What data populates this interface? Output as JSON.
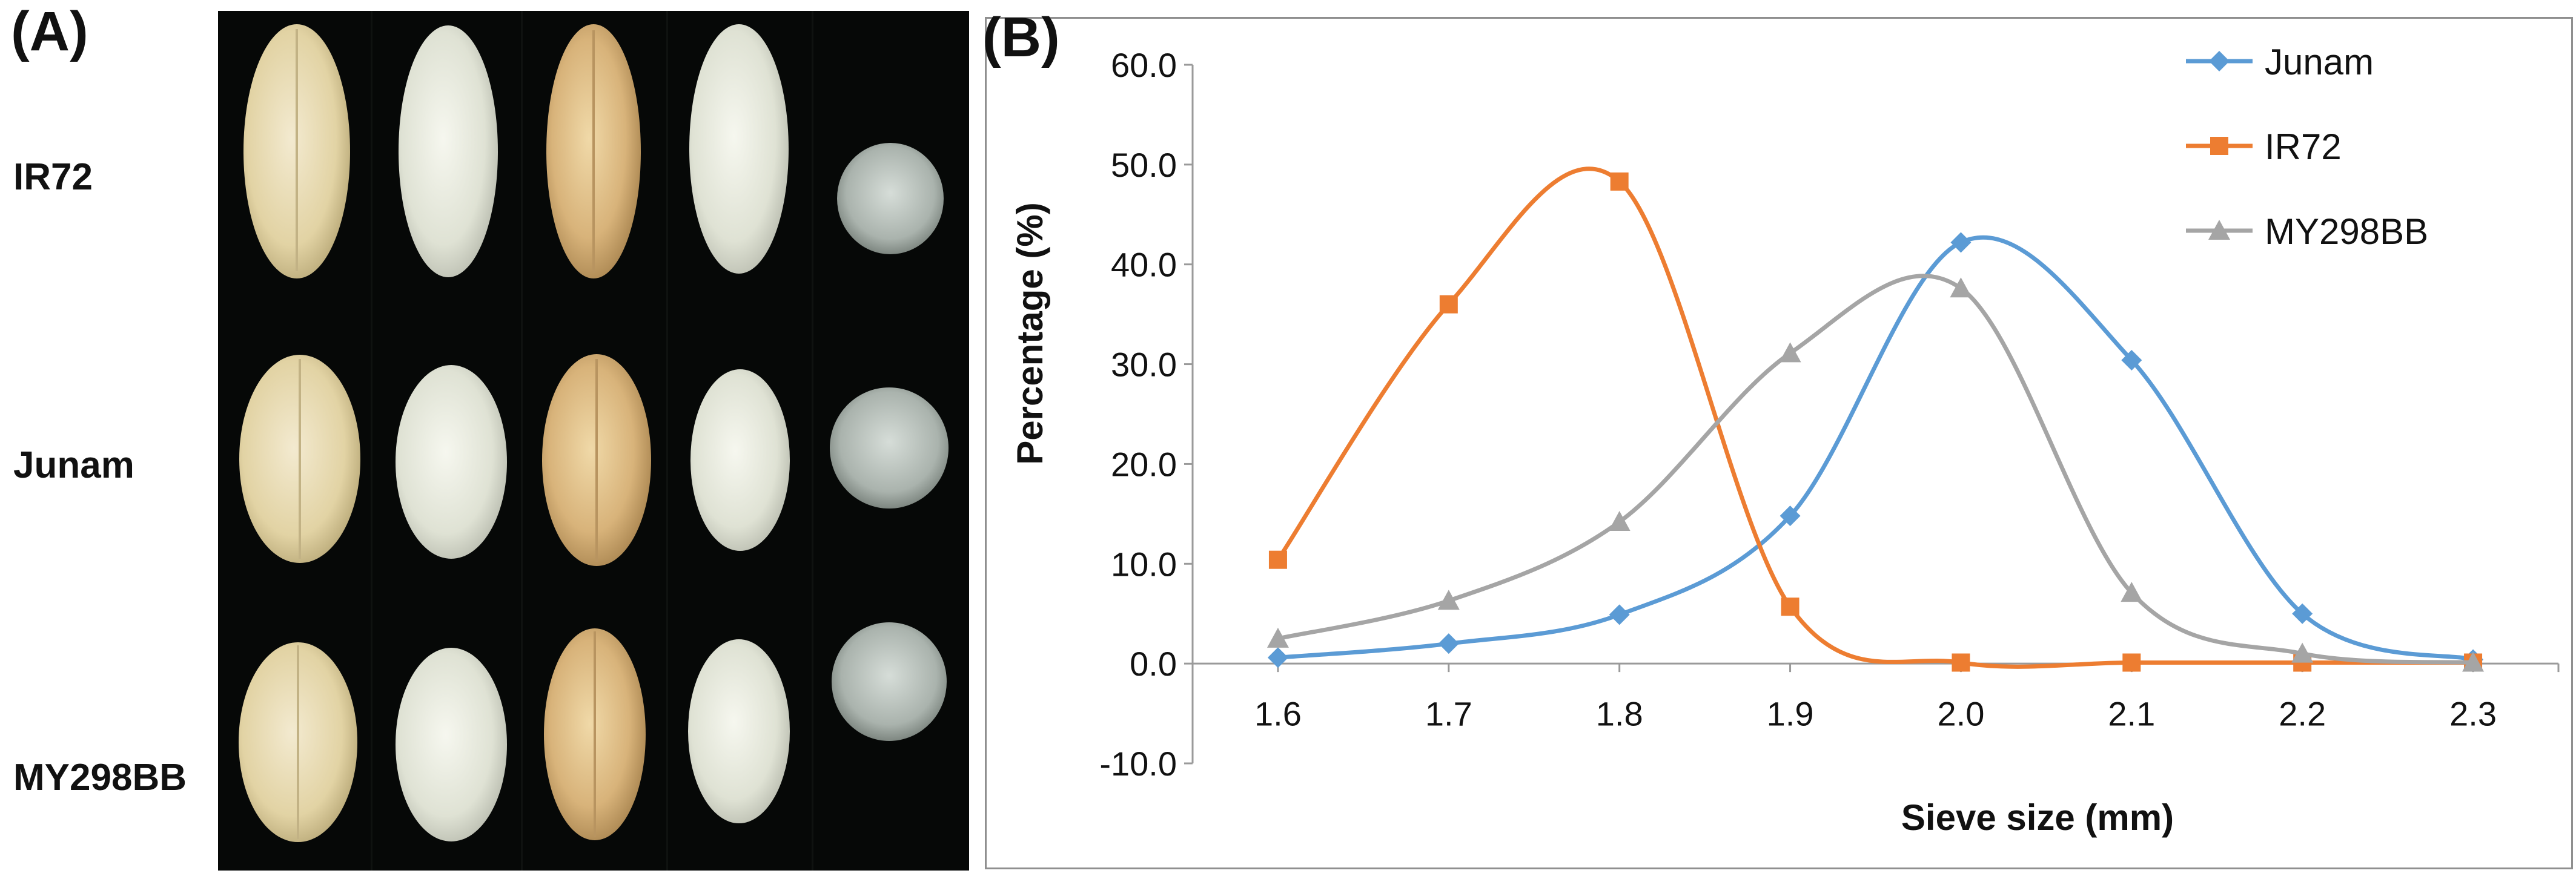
{
  "panels": {
    "a_label": "(A)",
    "b_label": "(B)",
    "row_labels": [
      "IR72",
      "Junam",
      "MY298BB"
    ]
  },
  "chart_data": {
    "type": "line",
    "title": "",
    "xlabel": "Sieve size (mm)",
    "ylabel": "Percentage (%)",
    "x": [
      1.6,
      1.7,
      1.8,
      1.9,
      2.0,
      2.1,
      2.2,
      2.3
    ],
    "x_tick_labels": [
      "1.6",
      "1.7",
      "1.8",
      "1.9",
      "2.0",
      "2.1",
      "2.2",
      "2.3"
    ],
    "xlim": [
      1.55,
      2.35
    ],
    "ylim": [
      -10,
      60
    ],
    "y_ticks": [
      -10,
      0,
      10,
      20,
      30,
      40,
      50,
      60
    ],
    "y_tick_labels": [
      "-10.0",
      "0.0",
      "10.0",
      "20.0",
      "30.0",
      "40.0",
      "50.0",
      "60.0"
    ],
    "grid": false,
    "smooth": true,
    "legend_position": "top-right",
    "series": [
      {
        "name": "Junam",
        "color": "#5B9BD5",
        "marker": "diamond",
        "values": [
          0.6,
          2.0,
          4.9,
          14.8,
          42.2,
          30.4,
          5.0,
          0.4
        ]
      },
      {
        "name": "IR72",
        "color": "#ED7D31",
        "marker": "square",
        "values": [
          10.4,
          36.0,
          48.3,
          5.7,
          0.1,
          0.1,
          0.1,
          0.1
        ]
      },
      {
        "name": "MY298BB",
        "color": "#A5A5A5",
        "marker": "triangle",
        "values": [
          2.5,
          6.3,
          14.2,
          31.1,
          37.6,
          7.1,
          1.0,
          0.1
        ]
      }
    ]
  }
}
